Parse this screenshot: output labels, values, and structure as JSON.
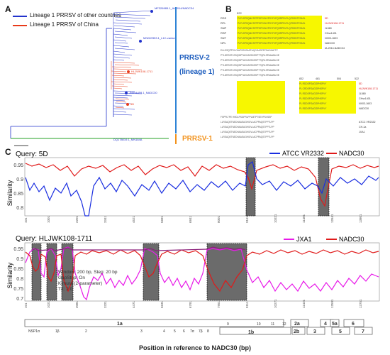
{
  "panel_a": {
    "letter": "A",
    "legend": [
      {
        "label": "Lineage 1 PRRSV of other countries",
        "color": "#2233cc"
      },
      {
        "label": "Lineage 1 PRRSV of China",
        "color": "#e83a1a"
      }
    ],
    "clade_labels": {
      "prrsv2": "PRRSV-2",
      "lineage1": "(lineage 1)",
      "prrsv1": "PRRSV-1"
    },
    "tip_labels": [
      "MF326985.1_IA/2014/NADC34",
      "MN067853.1_L1C-variant",
      "HLJWK108-1711",
      "JN654459.1_NADC30",
      "5D",
      "DQ178019.1_MN184A"
    ]
  },
  "panel_b": {
    "letter": "B",
    "top_start": "522",
    "seq_names": [
      "RSS",
      "RFL",
      "SNP",
      "RSP",
      "SNT",
      "NPL"
    ],
    "ref_names": [
      "5D",
      "HLJWK108-1711",
      "JL580",
      "CHsx1401",
      "NX03-1603",
      "NADC30",
      "IA-2014-NADC34"
    ],
    "bottom_positions": [
      "832",
      "481",
      "504",
      "522"
    ],
    "bottom_ref_names": [
      "5D",
      "HLJWK108-1711",
      "JL580",
      "CHsx1401",
      "NX03-1603",
      "NADC30",
      "ATCC VR2332",
      "CH-1a",
      "JXA1"
    ],
    "highlight": "#f7f700",
    "red_names": [
      "5D",
      "HLJWK108-1711"
    ]
  },
  "panel_c": {
    "letter": "C",
    "x_axis_label": "Position in reference to NADC30 (bp)",
    "plot1": {
      "query": "Query: 5D",
      "series": [
        {
          "name": "ATCC VR2332",
          "color": "#1a2ee0"
        },
        {
          "name": "NADC30",
          "color": "#e01a1a"
        }
      ],
      "ylabel": "Similarity",
      "yticks": [
        "0.95",
        "0.9",
        "0.85",
        "0.8"
      ]
    },
    "plot2": {
      "query": "Query: HLJWK108-1711",
      "series": [
        {
          "name": "JXA1",
          "color": "#e81ae8"
        },
        {
          "name": "NADC30",
          "color": "#e01a1a"
        }
      ],
      "ylabel": "Similarity",
      "yticks": [
        "0.95",
        "0.9",
        "0.85",
        "0.8",
        "0.75",
        "0.7"
      ],
      "annotation": [
        "Window: 200 bp, Step: 20 bp",
        "GapStrip: On",
        "Kimura (2-parameter)",
        "T/t: 2.0"
      ]
    },
    "genome": {
      "top_row": [
        "NSP1α",
        "1β",
        "2",
        "1a",
        "3",
        "4",
        "5",
        "6",
        "7α",
        "7β",
        "8",
        "9",
        "10",
        "11",
        "12"
      ],
      "mid_labels": [
        "1b"
      ],
      "orfs_top": [
        "2a",
        "4",
        "5a",
        "6"
      ],
      "orfs_bottom": [
        "2b",
        "3",
        "5",
        "7"
      ]
    }
  }
}
